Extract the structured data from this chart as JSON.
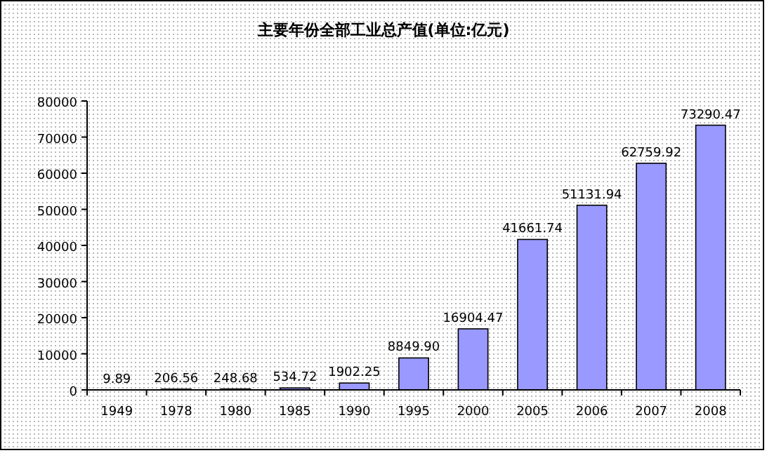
{
  "chart_data": {
    "type": "bar",
    "title": "主要年份全部工业总产值(单位:亿元)",
    "categories": [
      "1949",
      "1978",
      "1980",
      "1985",
      "1990",
      "1995",
      "2000",
      "2005",
      "2006",
      "2007",
      "2008"
    ],
    "values": [
      9.89,
      206.56,
      248.68,
      534.72,
      1902.25,
      8849.9,
      16904.47,
      41661.74,
      51131.94,
      62759.92,
      73290.47
    ],
    "value_labels": [
      "9.89",
      "206.56",
      "248.68",
      "534.72",
      "1902.25",
      "8849.90",
      "16904.47",
      "41661.74",
      "51131.94",
      "62759.92",
      "73290.47"
    ],
    "color": "#9999ff",
    "ylim": [
      0,
      80000
    ],
    "yticks": [
      0,
      10000,
      20000,
      30000,
      40000,
      50000,
      60000,
      70000,
      80000
    ]
  }
}
